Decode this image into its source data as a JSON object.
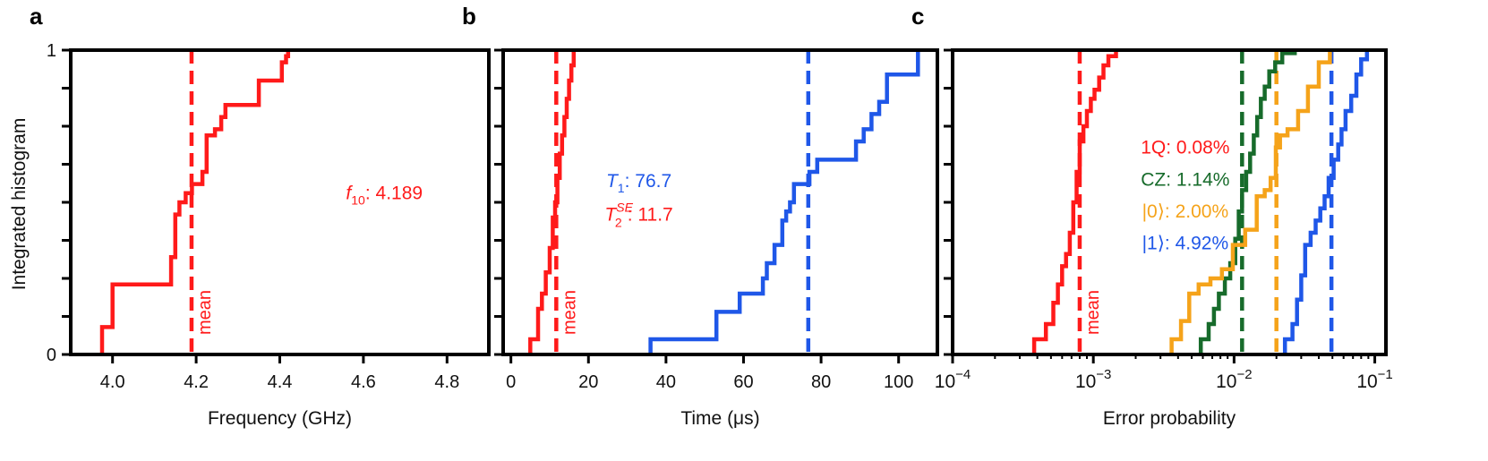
{
  "figure": {
    "y_axis_label": "Integrated histogram"
  },
  "colors": {
    "red": "#ff1a1a",
    "blue": "#1f57e8",
    "green": "#176b2b",
    "orange": "#f5a31a",
    "axis": "#000000"
  },
  "chart_data": [
    {
      "panel_label": "a",
      "type": "line",
      "step": true,
      "xscale": "linear",
      "xlabel": "Frequency (GHz)",
      "ylabel": "Integrated histogram",
      "xlim": [
        3.9,
        4.9
      ],
      "ylim": [
        0,
        1
      ],
      "xticks": [
        4.0,
        4.2,
        4.4,
        4.6,
        4.8
      ],
      "xtick_labels": [
        "4.0",
        "4.2",
        "4.4",
        "4.6",
        "4.8"
      ],
      "yticks": [
        0,
        1
      ],
      "ytick_labels": [
        "0",
        "1"
      ],
      "minor_yticks": [
        0.125,
        0.25,
        0.375,
        0.5,
        0.625,
        0.75,
        0.875
      ],
      "series": [
        {
          "name": "f10",
          "color": "red",
          "x": [
            3.975,
            3.975,
            4.0,
            4.0,
            4.02,
            4.02,
            4.14,
            4.14,
            4.15,
            4.15,
            4.16,
            4.16,
            4.175,
            4.175,
            4.19,
            4.19,
            4.215,
            4.215,
            4.225,
            4.225,
            4.245,
            4.245,
            4.26,
            4.26,
            4.27,
            4.27,
            4.29,
            4.29,
            4.35,
            4.35,
            4.405,
            4.405,
            4.415,
            4.415,
            4.42,
            4.42
          ],
          "y": [
            0,
            0.09,
            0.09,
            0.23,
            0.23,
            0.23,
            0.23,
            0.32,
            0.32,
            0.46,
            0.46,
            0.5,
            0.5,
            0.53,
            0.53,
            0.56,
            0.56,
            0.6,
            0.6,
            0.72,
            0.72,
            0.74,
            0.74,
            0.78,
            0.78,
            0.82,
            0.82,
            0.82,
            0.82,
            0.9,
            0.9,
            0.96,
            0.96,
            0.98,
            0.98,
            1.0
          ]
        }
      ],
      "vlines": [
        {
          "x": 4.189,
          "color": "red",
          "label": "mean"
        }
      ],
      "annotations": [
        {
          "color": "red",
          "sym": "f",
          "sub": "10",
          "text": ": 4.189",
          "x": 4.65,
          "y": 0.51
        }
      ]
    },
    {
      "panel_label": "b",
      "type": "line",
      "step": true,
      "xscale": "linear",
      "xlabel": "Time (μs)",
      "ylabel": "",
      "xlim": [
        -2,
        110
      ],
      "ylim": [
        0,
        1
      ],
      "xticks": [
        0,
        20,
        40,
        60,
        80,
        100
      ],
      "xtick_labels": [
        "0",
        "20",
        "40",
        "60",
        "80",
        "100"
      ],
      "yticks": [
        0,
        1
      ],
      "ytick_labels": [
        "",
        ""
      ],
      "minor_yticks": [
        0.125,
        0.25,
        0.375,
        0.5,
        0.625,
        0.75,
        0.875
      ],
      "series": [
        {
          "name": "T2SE",
          "color": "red",
          "x": [
            5,
            5,
            7,
            7,
            8,
            8,
            9,
            9,
            10,
            10,
            10.8,
            10.8,
            11.4,
            11.4,
            12,
            12,
            12.6,
            12.6,
            13.2,
            13.2,
            13.8,
            13.8,
            14.4,
            14.4,
            15,
            15,
            15.6,
            15.6,
            16.2,
            16.2
          ],
          "y": [
            0,
            0.05,
            0.05,
            0.15,
            0.15,
            0.2,
            0.2,
            0.27,
            0.27,
            0.35,
            0.35,
            0.45,
            0.45,
            0.5,
            0.5,
            0.58,
            0.58,
            0.66,
            0.66,
            0.72,
            0.72,
            0.78,
            0.78,
            0.84,
            0.84,
            0.9,
            0.9,
            0.95,
            0.95,
            1.0
          ]
        },
        {
          "name": "T1",
          "color": "blue",
          "x": [
            36,
            36,
            53,
            53,
            59,
            59,
            65,
            65,
            66,
            66,
            68,
            68,
            70,
            70,
            71,
            71,
            72,
            72,
            73,
            73,
            77,
            77,
            79,
            79,
            89,
            89,
            91,
            91,
            93,
            93,
            95,
            95,
            97,
            97,
            105,
            105
          ],
          "y": [
            0,
            0.05,
            0.05,
            0.14,
            0.14,
            0.2,
            0.2,
            0.25,
            0.25,
            0.3,
            0.3,
            0.36,
            0.36,
            0.44,
            0.44,
            0.47,
            0.47,
            0.5,
            0.5,
            0.56,
            0.56,
            0.6,
            0.6,
            0.64,
            0.64,
            0.7,
            0.7,
            0.74,
            0.74,
            0.79,
            0.79,
            0.83,
            0.83,
            0.92,
            0.92,
            1.0
          ]
        }
      ],
      "vlines": [
        {
          "x": 11.7,
          "color": "red",
          "label": "mean"
        },
        {
          "x": 76.7,
          "color": "blue",
          "label": ""
        }
      ],
      "annotations": [
        {
          "color": "blue",
          "sym": "T",
          "sub": "1",
          "text": ": 76.7",
          "x": 33,
          "y": 0.55
        },
        {
          "color": "red",
          "sym": "T",
          "sub": "2",
          "sup": "SE",
          "text": ": 11.7",
          "x": 33,
          "y": 0.44
        }
      ]
    },
    {
      "panel_label": "c",
      "type": "line",
      "step": true,
      "xscale": "log",
      "xlabel": "Error probability",
      "ylabel": "",
      "xlim": [
        0.0001,
        0.12
      ],
      "ylim": [
        0,
        1
      ],
      "xticks": [
        0.0001,
        0.001,
        0.01,
        0.1
      ],
      "xtick_labels": [
        {
          "base": "10",
          "exp": "−4"
        },
        {
          "base": "10",
          "exp": "−3"
        },
        {
          "base": "10",
          "exp": "−2"
        },
        {
          "base": "10",
          "exp": "−1"
        }
      ],
      "yticks": [
        0,
        1
      ],
      "ytick_labels": [
        "",
        ""
      ],
      "minor_yticks": [
        0.125,
        0.25,
        0.375,
        0.5,
        0.625,
        0.75,
        0.875
      ],
      "series": [
        {
          "name": "1Q",
          "color": "red",
          "x": [
            0.00038,
            0.00038,
            0.00046,
            0.00046,
            0.00052,
            0.00052,
            0.00056,
            0.00056,
            0.0006,
            0.0006,
            0.00064,
            0.00064,
            0.00068,
            0.00068,
            0.00072,
            0.00072,
            0.00076,
            0.00076,
            0.0008,
            0.0008,
            0.00085,
            0.00085,
            0.0009,
            0.0009,
            0.00096,
            0.00096,
            0.00102,
            0.00102,
            0.0011,
            0.0011,
            0.00118,
            0.00118,
            0.00128,
            0.00128,
            0.00145,
            0.00145
          ],
          "y": [
            0,
            0.05,
            0.05,
            0.1,
            0.1,
            0.17,
            0.17,
            0.23,
            0.23,
            0.29,
            0.29,
            0.33,
            0.33,
            0.4,
            0.4,
            0.5,
            0.5,
            0.6,
            0.6,
            0.7,
            0.7,
            0.75,
            0.75,
            0.8,
            0.8,
            0.84,
            0.84,
            0.87,
            0.87,
            0.91,
            0.91,
            0.95,
            0.95,
            0.98,
            0.98,
            1.0
          ]
        },
        {
          "name": "CZ",
          "color": "green",
          "x": [
            0.0058,
            0.0058,
            0.0066,
            0.0066,
            0.0072,
            0.0072,
            0.0078,
            0.0078,
            0.0086,
            0.0086,
            0.0094,
            0.0094,
            0.0102,
            0.0102,
            0.0108,
            0.0108,
            0.0114,
            0.0114,
            0.0122,
            0.0122,
            0.013,
            0.013,
            0.0138,
            0.0138,
            0.0146,
            0.0146,
            0.0155,
            0.0155,
            0.0165,
            0.0165,
            0.0178,
            0.0178,
            0.0196,
            0.0196,
            0.022,
            0.022,
            0.027,
            0.027
          ],
          "y": [
            0,
            0.05,
            0.05,
            0.1,
            0.1,
            0.15,
            0.15,
            0.2,
            0.2,
            0.25,
            0.25,
            0.3,
            0.3,
            0.38,
            0.38,
            0.47,
            0.47,
            0.54,
            0.54,
            0.6,
            0.6,
            0.66,
            0.66,
            0.72,
            0.72,
            0.78,
            0.78,
            0.84,
            0.84,
            0.88,
            0.88,
            0.93,
            0.93,
            0.96,
            0.96,
            0.99,
            0.99,
            1.0
          ]
        },
        {
          "name": "|0⟩",
          "color": "orange",
          "x": [
            0.0036,
            0.0036,
            0.0042,
            0.0042,
            0.0048,
            0.0048,
            0.0056,
            0.0056,
            0.0068,
            0.0068,
            0.0082,
            0.0082,
            0.0098,
            0.0098,
            0.012,
            0.012,
            0.0145,
            0.0145,
            0.0165,
            0.0165,
            0.0182,
            0.0182,
            0.0198,
            0.0198,
            0.0212,
            0.0212,
            0.024,
            0.024,
            0.0285,
            0.0285,
            0.0335,
            0.0335,
            0.04,
            0.04,
            0.048,
            0.048
          ],
          "y": [
            0,
            0.05,
            0.05,
            0.11,
            0.11,
            0.2,
            0.2,
            0.23,
            0.23,
            0.25,
            0.25,
            0.28,
            0.28,
            0.36,
            0.36,
            0.41,
            0.41,
            0.52,
            0.52,
            0.54,
            0.54,
            0.58,
            0.58,
            0.68,
            0.68,
            0.72,
            0.72,
            0.74,
            0.74,
            0.8,
            0.8,
            0.88,
            0.88,
            0.96,
            0.96,
            1.0
          ]
        },
        {
          "name": "|1⟩",
          "color": "blue",
          "x": [
            0.023,
            0.023,
            0.026,
            0.026,
            0.028,
            0.028,
            0.03,
            0.03,
            0.032,
            0.032,
            0.035,
            0.035,
            0.038,
            0.038,
            0.041,
            0.041,
            0.044,
            0.044,
            0.047,
            0.047,
            0.051,
            0.051,
            0.055,
            0.055,
            0.058,
            0.058,
            0.062,
            0.062,
            0.068,
            0.068,
            0.074,
            0.074,
            0.08,
            0.08,
            0.088,
            0.088
          ],
          "y": [
            0,
            0.05,
            0.05,
            0.1,
            0.1,
            0.18,
            0.18,
            0.26,
            0.26,
            0.36,
            0.36,
            0.4,
            0.4,
            0.44,
            0.44,
            0.48,
            0.48,
            0.52,
            0.52,
            0.58,
            0.58,
            0.64,
            0.64,
            0.69,
            0.69,
            0.74,
            0.74,
            0.8,
            0.8,
            0.85,
            0.85,
            0.92,
            0.92,
            0.97,
            0.97,
            1.0
          ]
        }
      ],
      "vlines": [
        {
          "x": 0.0008,
          "color": "red",
          "label": "mean"
        },
        {
          "x": 0.0114,
          "color": "green",
          "label": ""
        },
        {
          "x": 0.02,
          "color": "orange",
          "label": ""
        },
        {
          "x": 0.0492,
          "color": "blue",
          "label": ""
        }
      ],
      "annotations": [
        {
          "color": "red",
          "text": "1Q: 0.08%",
          "x": 0.0045,
          "y": 0.66
        },
        {
          "color": "green",
          "text": "CZ: 1.14%",
          "x": 0.0045,
          "y": 0.555
        },
        {
          "color": "orange",
          "text": "|0⟩: 2.00%",
          "x": 0.0045,
          "y": 0.45
        },
        {
          "color": "blue",
          "text": "|1⟩: 4.92%",
          "x": 0.0045,
          "y": 0.345
        }
      ]
    }
  ]
}
